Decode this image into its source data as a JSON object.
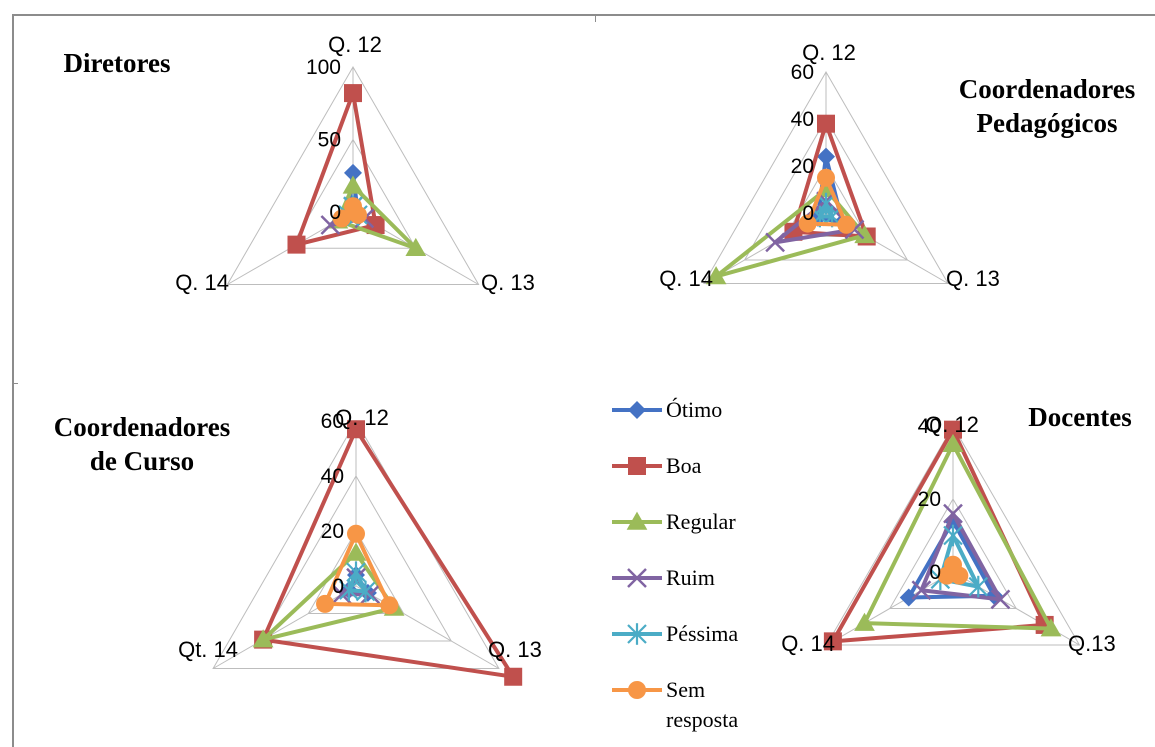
{
  "legend": {
    "series": [
      {
        "name": "Ótimo",
        "color": "#4472C4",
        "marker": "diamond"
      },
      {
        "name": "Boa",
        "color": "#C0504D",
        "marker": "square"
      },
      {
        "name": "Regular",
        "color": "#9BBB59",
        "marker": "triangle"
      },
      {
        "name": "Ruim",
        "color": "#8064A2",
        "marker": "x"
      },
      {
        "name": "Péssima",
        "color": "#4BACC6",
        "marker": "star"
      },
      {
        "name": "Sem resposta",
        "color": "#F79646",
        "marker": "circle"
      }
    ]
  },
  "chart_data": [
    {
      "type": "radar",
      "title_lines": [
        "Diretores"
      ],
      "axes": [
        "Q. 12",
        "Q. 13",
        "Q. 14"
      ],
      "rmax": 100,
      "ticks": [
        0,
        50,
        100
      ],
      "series": [
        {
          "name": "Ótimo",
          "values": [
            27,
            4,
            4
          ]
        },
        {
          "name": "Boa",
          "values": [
            82,
            18,
            45
          ]
        },
        {
          "name": "Regular",
          "values": [
            18,
            50,
            12
          ]
        },
        {
          "name": "Ruim",
          "values": [
            4,
            9,
            18
          ]
        },
        {
          "name": "Péssima",
          "values": [
            4,
            4,
            4
          ]
        },
        {
          "name": "Sem resposta",
          "values": [
            4,
            4,
            9
          ]
        }
      ]
    },
    {
      "type": "radar",
      "title_lines": [
        "Coordenadores",
        "Pedagógicos"
      ],
      "axes": [
        "Q. 12",
        "Q. 13",
        "Q. 14"
      ],
      "rmax": 60,
      "ticks": [
        0,
        20,
        40,
        60
      ],
      "series": [
        {
          "name": "Ótimo",
          "values": [
            24,
            8,
            4
          ]
        },
        {
          "name": "Boa",
          "values": [
            38,
            20,
            16
          ]
        },
        {
          "name": "Regular",
          "values": [
            10,
            19,
            54
          ]
        },
        {
          "name": "Ruim",
          "values": [
            5,
            14,
            25
          ]
        },
        {
          "name": "Péssima",
          "values": [
            4,
            3,
            3
          ]
        },
        {
          "name": "Sem resposta",
          "values": [
            15,
            10,
            9
          ]
        }
      ]
    },
    {
      "type": "radar",
      "title_lines": [
        "Coordenadores",
        "de Curso"
      ],
      "axes": [
        "Q. 12",
        "Q. 13",
        "Qt. 14"
      ],
      "rmax": 60,
      "ticks": [
        0,
        20,
        40,
        60
      ],
      "series": [
        {
          "name": "Ótimo",
          "values": [
            4,
            5,
            3
          ]
        },
        {
          "name": "Boa",
          "values": [
            57,
            66,
            39
          ]
        },
        {
          "name": "Regular",
          "values": [
            12,
            16,
            39
          ]
        },
        {
          "name": "Ruim",
          "values": [
            3,
            6,
            6
          ]
        },
        {
          "name": "Péssima",
          "values": [
            5,
            4,
            3
          ]
        },
        {
          "name": "Sem resposta",
          "values": [
            19,
            14,
            13
          ]
        }
      ]
    },
    {
      "type": "radar",
      "title_lines": [
        "Docentes"
      ],
      "axes": [
        "Q. 12",
        "Q.13",
        "Q. 14"
      ],
      "rmax": 40,
      "ticks": [
        0,
        20,
        40
      ],
      "series": [
        {
          "name": "Ótimo",
          "values": [
            14,
            13,
            14
          ]
        },
        {
          "name": "Boa",
          "values": [
            39,
            29,
            38
          ]
        },
        {
          "name": "Regular",
          "values": [
            35,
            31,
            28
          ]
        },
        {
          "name": "Ruim",
          "values": [
            16,
            15,
            10
          ]
        },
        {
          "name": "Péssima",
          "values": [
            10,
            8,
            4
          ]
        },
        {
          "name": "Sem resposta",
          "values": [
            2,
            2,
            2
          ]
        }
      ]
    }
  ]
}
